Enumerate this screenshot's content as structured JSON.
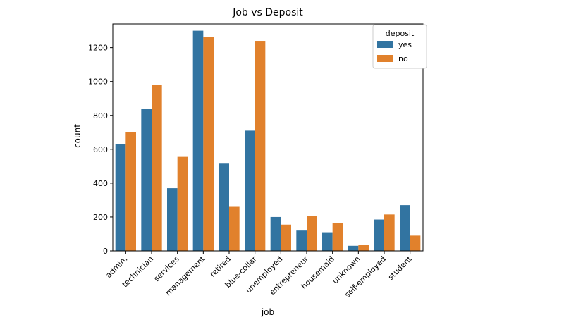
{
  "chart_data": {
    "type": "bar",
    "title": "Job vs Deposit",
    "xlabel": "job",
    "ylabel": "count",
    "ylim": [
      0,
      1340
    ],
    "yticks": [
      0,
      200,
      400,
      600,
      800,
      1000,
      1200
    ],
    "grid": false,
    "legend": {
      "title": "deposit",
      "placement": "top-right"
    },
    "categories": [
      "admin.",
      "technician",
      "services",
      "management",
      "retired",
      "blue-collar",
      "unemployed",
      "entrepreneur",
      "housemaid",
      "unknown",
      "self-employed",
      "student"
    ],
    "series": [
      {
        "name": "yes",
        "color": "#3274a1",
        "values": [
          630,
          840,
          370,
          1300,
          515,
          710,
          200,
          120,
          110,
          30,
          185,
          270
        ]
      },
      {
        "name": "no",
        "color": "#e1812c",
        "values": [
          700,
          980,
          555,
          1265,
          260,
          1240,
          155,
          205,
          165,
          35,
          215,
          90
        ]
      }
    ]
  }
}
